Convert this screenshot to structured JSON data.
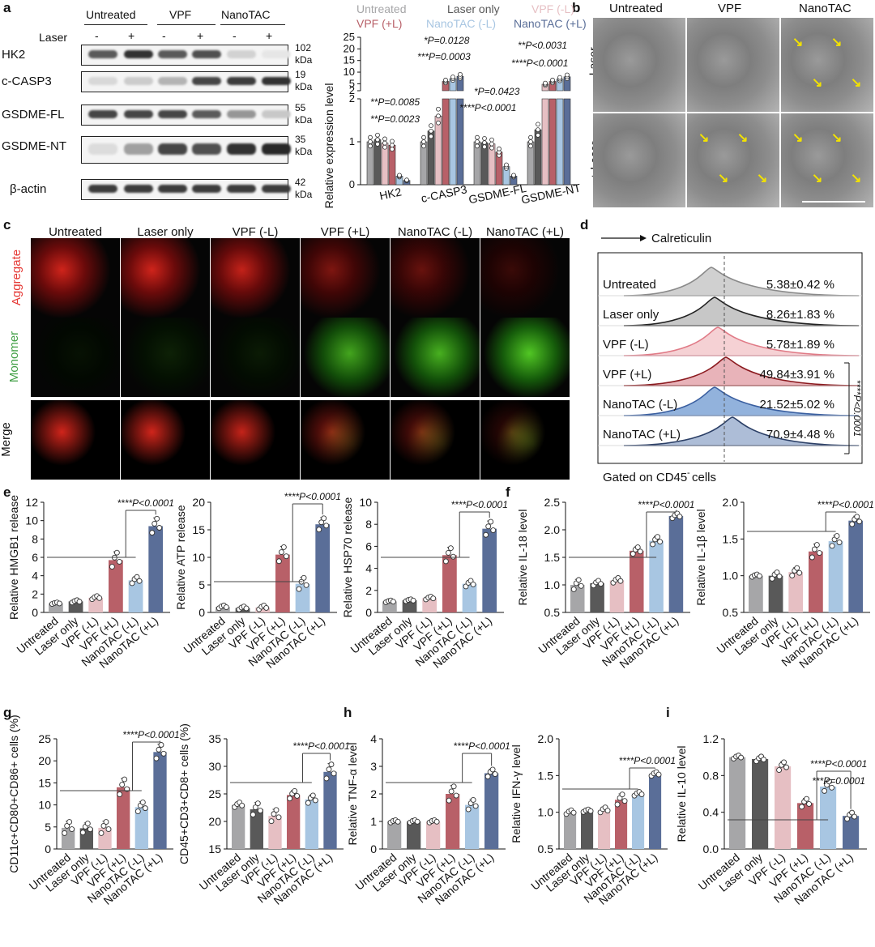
{
  "colors": {
    "g1": "#a6a6a8",
    "g2": "#595959",
    "pink": "#e6bfc3",
    "red": "#b86068",
    "lblue": "#a8c6e2",
    "blue": "#5a6e98",
    "aggregate": "#e53935",
    "monomer": "#43a047"
  },
  "panels": {
    "a": "a",
    "b": "b",
    "c": "c",
    "d": "d",
    "e": "e",
    "f": "f",
    "g": "g",
    "h": "h",
    "i": "i"
  },
  "groups6": [
    "Untreated",
    "Laser only",
    "VPF (-L)",
    "VPF (+L)",
    "NanoTAC (-L)",
    "NanoTAC (+L)"
  ],
  "blot": {
    "groups": [
      "Untreated",
      "VPF",
      "NanoTAC"
    ],
    "laser_label": "Laser",
    "laser_signs": [
      "-",
      "+",
      "-",
      "+",
      "-",
      "+"
    ],
    "rows": [
      {
        "name": "HK2",
        "kda": "102",
        "kda_unit": "kDa",
        "bands": [
          0.75,
          0.95,
          0.75,
          0.8,
          0.15,
          0.05
        ]
      },
      {
        "name": "c-CASP3",
        "kda": "19",
        "kda_unit": "kDa",
        "bands": [
          0.12,
          0.18,
          0.3,
          0.85,
          0.9,
          0.95
        ]
      },
      {
        "name": "GSDME-FL",
        "kda": "55",
        "kda_unit": "kDa",
        "bands": [
          0.85,
          0.85,
          0.85,
          0.75,
          0.45,
          0.2
        ]
      },
      {
        "name": "GSDME-NT",
        "kda": "35",
        "kda_unit": "kDa",
        "bands": [
          0.1,
          0.4,
          0.85,
          0.8,
          0.95,
          1.0
        ]
      },
      {
        "name": "β-actin",
        "kda": "42",
        "kda_unit": "kDa",
        "bands": [
          0.9,
          0.9,
          0.9,
          0.9,
          0.9,
          0.9
        ]
      }
    ]
  },
  "b": {
    "cols": [
      "Untreated",
      "VPF",
      "NanoTAC"
    ],
    "rows": [
      "- Laser",
      "+ Laser"
    ]
  },
  "c": {
    "cols": [
      "Untreated",
      "Laser only",
      "VPF (-L)",
      "VPF (+L)",
      "NanoTAC (-L)",
      "NanoTAC (+L)"
    ],
    "rows": [
      "Aggregate",
      "Monomer",
      "Merge"
    ]
  },
  "d": {
    "axis": "Calreticulin",
    "footer_prefix": "Gated on CD45",
    "footer_sup": "-",
    "footer_suffix": " cells",
    "stat": "****P<0.0001",
    "rows": [
      {
        "label": "Untreated",
        "value": "5.38±0.42 %"
      },
      {
        "label": "Laser only",
        "value": "8.26±1.83 %"
      },
      {
        "label": "VPF (-L)",
        "value": "5.78±1.89 %"
      },
      {
        "label": "VPF (+L)",
        "value": "49.84±3.91 %"
      },
      {
        "label": "NanoTAC (-L)",
        "value": "21.52±5.02 %"
      },
      {
        "label": "NanoTAC (+L)",
        "value": "70.9±4.48 %"
      }
    ]
  },
  "chart_data": [
    {
      "id": "a",
      "type": "bar",
      "title": "",
      "xlabel": "",
      "ylabel": "Relative expression level",
      "legend": [
        "Untreated",
        "Laser only",
        "VPF (-L)",
        "VPF (+L)",
        "NanoTAC (-L)",
        "NanoTAC (+L)"
      ],
      "categories": [
        "HK2",
        "c-CASP3",
        "GSDME-FL",
        "GSDME-NT"
      ],
      "series": [
        {
          "name": "Untreated",
          "values": [
            1.0,
            1.0,
            1.0,
            1.0
          ]
        },
        {
          "name": "Laser only",
          "values": [
            1.05,
            1.25,
            0.98,
            1.28
          ]
        },
        {
          "name": "VPF (-L)",
          "values": [
            0.97,
            1.6,
            0.95,
            4.8
          ]
        },
        {
          "name": "VPF (+L)",
          "values": [
            0.92,
            6.0,
            0.76,
            6.0
          ]
        },
        {
          "name": "NanoTAC (-L)",
          "values": [
            0.2,
            7.2,
            0.42,
            7.0
          ]
        },
        {
          "name": "NanoTAC (+L)",
          "values": [
            0.1,
            8.2,
            0.2,
            8.0
          ]
        }
      ],
      "ylim_lower": [
        0,
        2
      ],
      "ylim_upper": [
        2,
        25
      ],
      "ticks_lower": [
        "0",
        "1",
        "2"
      ],
      "ticks_upper": [
        "2",
        "5",
        "10",
        "15",
        "20",
        "25"
      ],
      "stats": [
        "**P=0.0085",
        "**P=0.0023",
        "*P=0.0128",
        "***P=0.0003",
        "*P=0.0423",
        "****P<0.0001",
        "**P<0.0031",
        "****P<0.0001"
      ]
    },
    {
      "id": "e1",
      "type": "bar",
      "ylabel": "Relative HMGB1 release",
      "ylim": [
        0,
        12
      ],
      "ticks": [
        "0",
        "2",
        "4",
        "6",
        "8",
        "10",
        "12"
      ],
      "categories": [
        "Untreated",
        "Laser only",
        "VPF (-L)",
        "VPF (+L)",
        "NanoTAC (-L)",
        "NanoTAC (+L)"
      ],
      "values": [
        1.0,
        1.2,
        1.6,
        5.7,
        3.5,
        9.4
      ],
      "errors": [
        0.1,
        0.15,
        0.2,
        0.9,
        0.4,
        0.9
      ],
      "stat": "****P<0.0001"
    },
    {
      "id": "e2",
      "type": "bar",
      "ylabel": "Relative ATP release",
      "ylim": [
        0,
        20
      ],
      "ticks": [
        "0",
        "5",
        "10",
        "15",
        "20"
      ],
      "categories": [
        "Untreated",
        "Laser only",
        "VPF (-L)",
        "VPF (+L)",
        "NanoTAC (-L)",
        "NanoTAC (+L)"
      ],
      "values": [
        1.0,
        0.8,
        0.9,
        10.5,
        5.2,
        16.0
      ],
      "errors": [
        0.3,
        0.3,
        0.4,
        1.5,
        1.2,
        1.2
      ],
      "stat": "****P<0.0001"
    },
    {
      "id": "e3",
      "type": "bar",
      "ylabel": "Relative HSP70 release",
      "ylim": [
        0,
        10
      ],
      "ticks": [
        "0",
        "2",
        "4",
        "6",
        "8",
        "10"
      ],
      "categories": [
        "Untreated",
        "Laser only",
        "VPF (-L)",
        "VPF (+L)",
        "NanoTAC (-L)",
        "NanoTAC (+L)"
      ],
      "values": [
        1.0,
        1.1,
        1.3,
        5.2,
        2.6,
        7.6
      ],
      "errors": [
        0.1,
        0.1,
        0.15,
        0.7,
        0.3,
        0.7
      ],
      "stat": "****P<0.0001"
    },
    {
      "id": "f1",
      "type": "bar",
      "ylabel": "Relative IL-18 level",
      "ylim": [
        0.5,
        2.5
      ],
      "ticks": [
        "0.5",
        "1.0",
        "1.5",
        "2.0",
        "2.5"
      ],
      "categories": [
        "Untreated",
        "Laser only",
        "VPF (-L)",
        "VPF (+L)",
        "NanoTAC (-L)",
        "NanoTAC (+L)"
      ],
      "values": [
        1.0,
        1.03,
        1.08,
        1.62,
        1.8,
        2.25
      ],
      "errors": [
        0.1,
        0.05,
        0.05,
        0.07,
        0.08,
        0.05
      ],
      "stat": "****P<0.0001"
    },
    {
      "id": "f2",
      "type": "bar",
      "ylabel": "Relative IL-1β level",
      "ylim": [
        0.5,
        2.0
      ],
      "ticks": [
        "0.5",
        "1.0",
        "1.5",
        "2.0"
      ],
      "categories": [
        "Untreated",
        "Laser only",
        "VPF (-L)",
        "VPF (+L)",
        "NanoTAC (-L)",
        "NanoTAC (+L)"
      ],
      "values": [
        1.0,
        1.0,
        1.05,
        1.33,
        1.47,
        1.75
      ],
      "errors": [
        0.02,
        0.05,
        0.06,
        0.1,
        0.08,
        0.06
      ],
      "stat": "****P<0.0001"
    },
    {
      "id": "g1",
      "type": "bar",
      "ylabel": "CD11c+CD80+CD86+ cells (%)",
      "ylim": [
        0,
        25
      ],
      "ticks": [
        "0",
        "5",
        "10",
        "15",
        "20",
        "25"
      ],
      "categories": [
        "Untreated",
        "Laser only",
        "VPF (-L)",
        "VPF (+L)",
        "NanoTAC (-L)",
        "NanoTAC (+L)"
      ],
      "values": [
        4.8,
        4.7,
        4.8,
        14.0,
        9.5,
        22.0
      ],
      "errors": [
        1.5,
        1.2,
        1.5,
        2.0,
        1.2,
        1.8
      ],
      "stat": "****P<0.0001"
    },
    {
      "id": "g2",
      "type": "bar",
      "ylabel": "CD45+CD3+CD8+ cells (%)",
      "ylim": [
        15,
        35
      ],
      "ticks": [
        "15",
        "20",
        "25",
        "30",
        "35"
      ],
      "categories": [
        "Untreated",
        "Laser only",
        "VPF (-L)",
        "VPF (+L)",
        "NanoTAC (-L)",
        "NanoTAC (+L)"
      ],
      "values": [
        23.0,
        22.2,
        21.0,
        24.8,
        24.0,
        29.0
      ],
      "errors": [
        0.5,
        1.2,
        1.2,
        0.8,
        0.8,
        1.5
      ],
      "stat": "****P<0.0001"
    },
    {
      "id": "h1",
      "type": "bar",
      "ylabel": "Relative TNF-α level",
      "ylim": [
        0,
        4
      ],
      "ticks": [
        "0",
        "1",
        "2",
        "3",
        "4"
      ],
      "categories": [
        "Untreated",
        "Laser only",
        "VPF (-L)",
        "VPF (+L)",
        "NanoTAC (-L)",
        "NanoTAC (+L)"
      ],
      "values": [
        1.0,
        1.0,
        1.0,
        2.0,
        1.6,
        2.75
      ],
      "errors": [
        0.05,
        0.05,
        0.05,
        0.3,
        0.2,
        0.15
      ],
      "stat": "****P<0.0001"
    },
    {
      "id": "h2",
      "type": "bar",
      "ylabel": "Relative IFN-γ level",
      "ylim": [
        0.5,
        2.0
      ],
      "ticks": [
        "0.5",
        "1.0",
        "1.5",
        "2.0"
      ],
      "categories": [
        "Untreated",
        "Laser only",
        "VPF (-L)",
        "VPF (+L)",
        "NanoTAC (-L)",
        "NanoTAC (+L)"
      ],
      "values": [
        1.0,
        1.02,
        1.03,
        1.17,
        1.25,
        1.52
      ],
      "errors": [
        0.03,
        0.02,
        0.04,
        0.08,
        0.03,
        0.03
      ],
      "stat": "****P<0.0001"
    },
    {
      "id": "i",
      "type": "bar",
      "ylabel": "Relative IL-10 level",
      "ylim": [
        0,
        1.2
      ],
      "ticks": [
        "0.0",
        "0.4",
        "0.8",
        "1.2"
      ],
      "categories": [
        "Untreated",
        "Laser only",
        "VPF (-L)",
        "VPF (+L)",
        "NanoTAC (-L)",
        "NanoTAC (+L)"
      ],
      "values": [
        1.0,
        0.98,
        0.9,
        0.5,
        0.68,
        0.36
      ],
      "errors": [
        0.02,
        0.03,
        0.05,
        0.05,
        0.06,
        0.04
      ],
      "stat": "****P<0.0001",
      "stat2": "***P=0.0001"
    }
  ]
}
